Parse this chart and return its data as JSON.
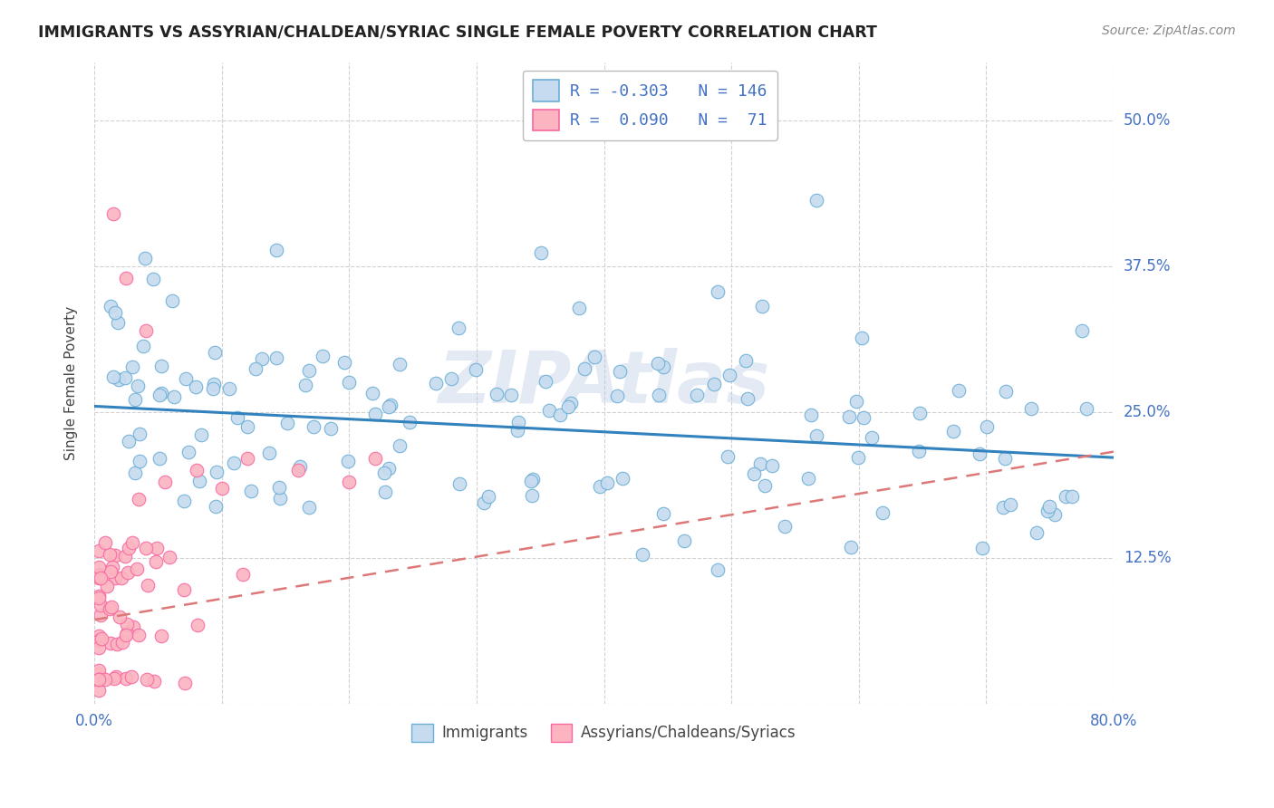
{
  "title": "IMMIGRANTS VS ASSYRIAN/CHALDEAN/SYRIAC SINGLE FEMALE POVERTY CORRELATION CHART",
  "source": "Source: ZipAtlas.com",
  "ylabel": "Single Female Poverty",
  "yticks": [
    0.0,
    0.125,
    0.25,
    0.375,
    0.5
  ],
  "ytick_labels": [
    "",
    "12.5%",
    "25.0%",
    "37.5%",
    "50.0%"
  ],
  "xlim": [
    0.0,
    0.8
  ],
  "ylim": [
    0.0,
    0.55
  ],
  "blue_face": "#c6dbef",
  "blue_edge": "#6baed6",
  "pink_face": "#fbb4c0",
  "pink_edge": "#f768a1",
  "line_blue": "#3182bd",
  "line_pink": "#de7878",
  "axis_label_color": "#4472c4",
  "title_color": "#222222",
  "watermark": "ZIPAtlas",
  "legend_label1": "R = -0.303   N = 146",
  "legend_label2": "R =  0.090   N =  71"
}
